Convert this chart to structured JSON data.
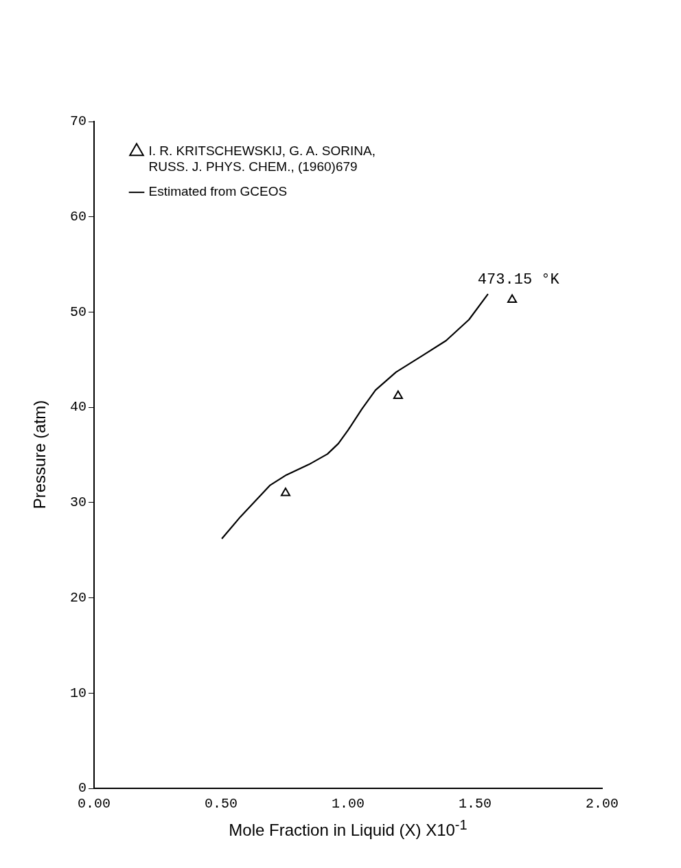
{
  "chart_data": {
    "type": "scatter",
    "xlabel": "Mole Fraction in Liquid (X)  X10$^{-1}$",
    "ylabel": "Pressure (atm)",
    "xlim": [
      0,
      2
    ],
    "xticks": [
      {
        "value": 0,
        "label": "0.00"
      },
      {
        "value": 0.5,
        "label": "0.50"
      },
      {
        "value": 1,
        "label": "1.00"
      },
      {
        "value": 1.5,
        "label": "1.50"
      },
      {
        "value": 2,
        "label": "2.00"
      }
    ],
    "ylim": [
      0,
      70
    ],
    "yticks": [
      0,
      10,
      20,
      30,
      40,
      50,
      60,
      70
    ],
    "grid": false,
    "legend": "top left",
    "annotations": [
      "473.15 °K"
    ],
    "series": [
      {
        "name": "I. R. KRITSCHEWSKIJ, G. A. SORINA,\nRUSS. J. PHYS. CHEM., (1960)679",
        "type": "scatter",
        "marker": "triangle",
        "color": "#000000",
        "x": [
          0.754,
          1.197,
          1.646
        ],
        "values": [
          31.0,
          41.2,
          51.3
        ]
      },
      {
        "name": "Estimated from GCEOS",
        "type": "line",
        "marker": "none",
        "line_style": "solid",
        "color": "#000000",
        "x": [
          0.503,
          0.576,
          0.692,
          0.757,
          0.846,
          0.919,
          0.962,
          1.0,
          1.054,
          1.108,
          1.189,
          1.297,
          1.386,
          1.476,
          1.551
        ],
        "values": [
          26.2,
          28.5,
          31.8,
          32.9,
          34.0,
          35.1,
          36.2,
          37.6,
          39.8,
          41.8,
          43.7,
          45.5,
          47.0,
          49.2,
          51.9
        ]
      }
    ]
  }
}
